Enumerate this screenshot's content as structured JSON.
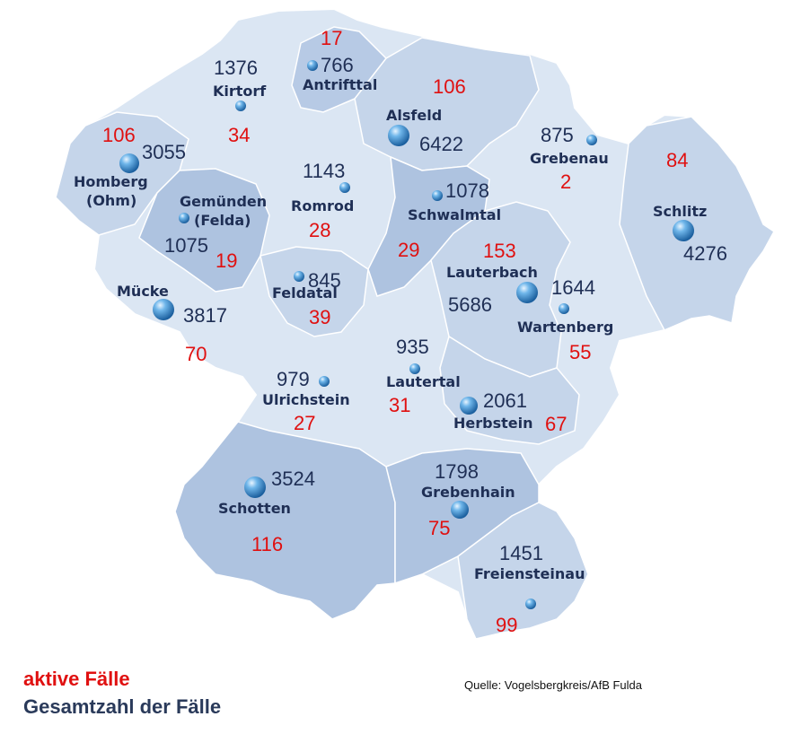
{
  "legend": {
    "active_label": "aktive Fälle",
    "total_label": "Gesamtzahl der Fälle"
  },
  "source": "Quelle: Vogelsbergkreis/AfB Fulda",
  "colors": {
    "active": "#e01010",
    "total": "#1f2f55",
    "region_light": "#dbe6f3",
    "region_mid": "#c5d5ea",
    "region_dark": "#aec3e0"
  },
  "municipalities": [
    {
      "id": "antrifttal",
      "name": "Antrifttal",
      "total": "766",
      "active": "17"
    },
    {
      "id": "kirtorf",
      "name": "Kirtorf",
      "total": "1376",
      "active": "34"
    },
    {
      "id": "alsfeld",
      "name": "Alsfeld",
      "total": "6422",
      "active": "106"
    },
    {
      "id": "homberg",
      "name": "Homberg",
      "name2": "(Ohm)",
      "total": "3055",
      "active": "106"
    },
    {
      "id": "grebenau",
      "name": "Grebenau",
      "total": "875",
      "active": "2"
    },
    {
      "id": "schlitz",
      "name": "Schlitz",
      "total": "4276",
      "active": "84"
    },
    {
      "id": "romrod",
      "name": "Romrod",
      "total": "1143",
      "active": "28"
    },
    {
      "id": "gemuenden",
      "name": "Gemünden",
      "name2": "(Felda)",
      "total": "1075",
      "active": "19"
    },
    {
      "id": "schwalmtal",
      "name": "Schwalmtal",
      "total": "1078",
      "active": "29"
    },
    {
      "id": "lauterbach",
      "name": "Lauterbach",
      "total": "5686",
      "active": "153"
    },
    {
      "id": "wartenberg",
      "name": "Wartenberg",
      "total": "1644",
      "active": "55"
    },
    {
      "id": "muecke",
      "name": "Mücke",
      "total": "3817",
      "active": "70"
    },
    {
      "id": "feldatal",
      "name": "Feldatal",
      "total": "845",
      "active": "39"
    },
    {
      "id": "lautertal",
      "name": "Lautertal",
      "total": "935",
      "active": "31"
    },
    {
      "id": "ulrichstein",
      "name": "Ulrichstein",
      "total": "979",
      "active": "27"
    },
    {
      "id": "herbstein",
      "name": "Herbstein",
      "total": "2061",
      "active": "67"
    },
    {
      "id": "schotten",
      "name": "Schotten",
      "total": "3524",
      "active": "116"
    },
    {
      "id": "grebenhain",
      "name": "Grebenhain",
      "total": "1798",
      "active": "75"
    },
    {
      "id": "freiensteinau",
      "name": "Freiensteinau",
      "total": "1451",
      "active": "99"
    }
  ]
}
